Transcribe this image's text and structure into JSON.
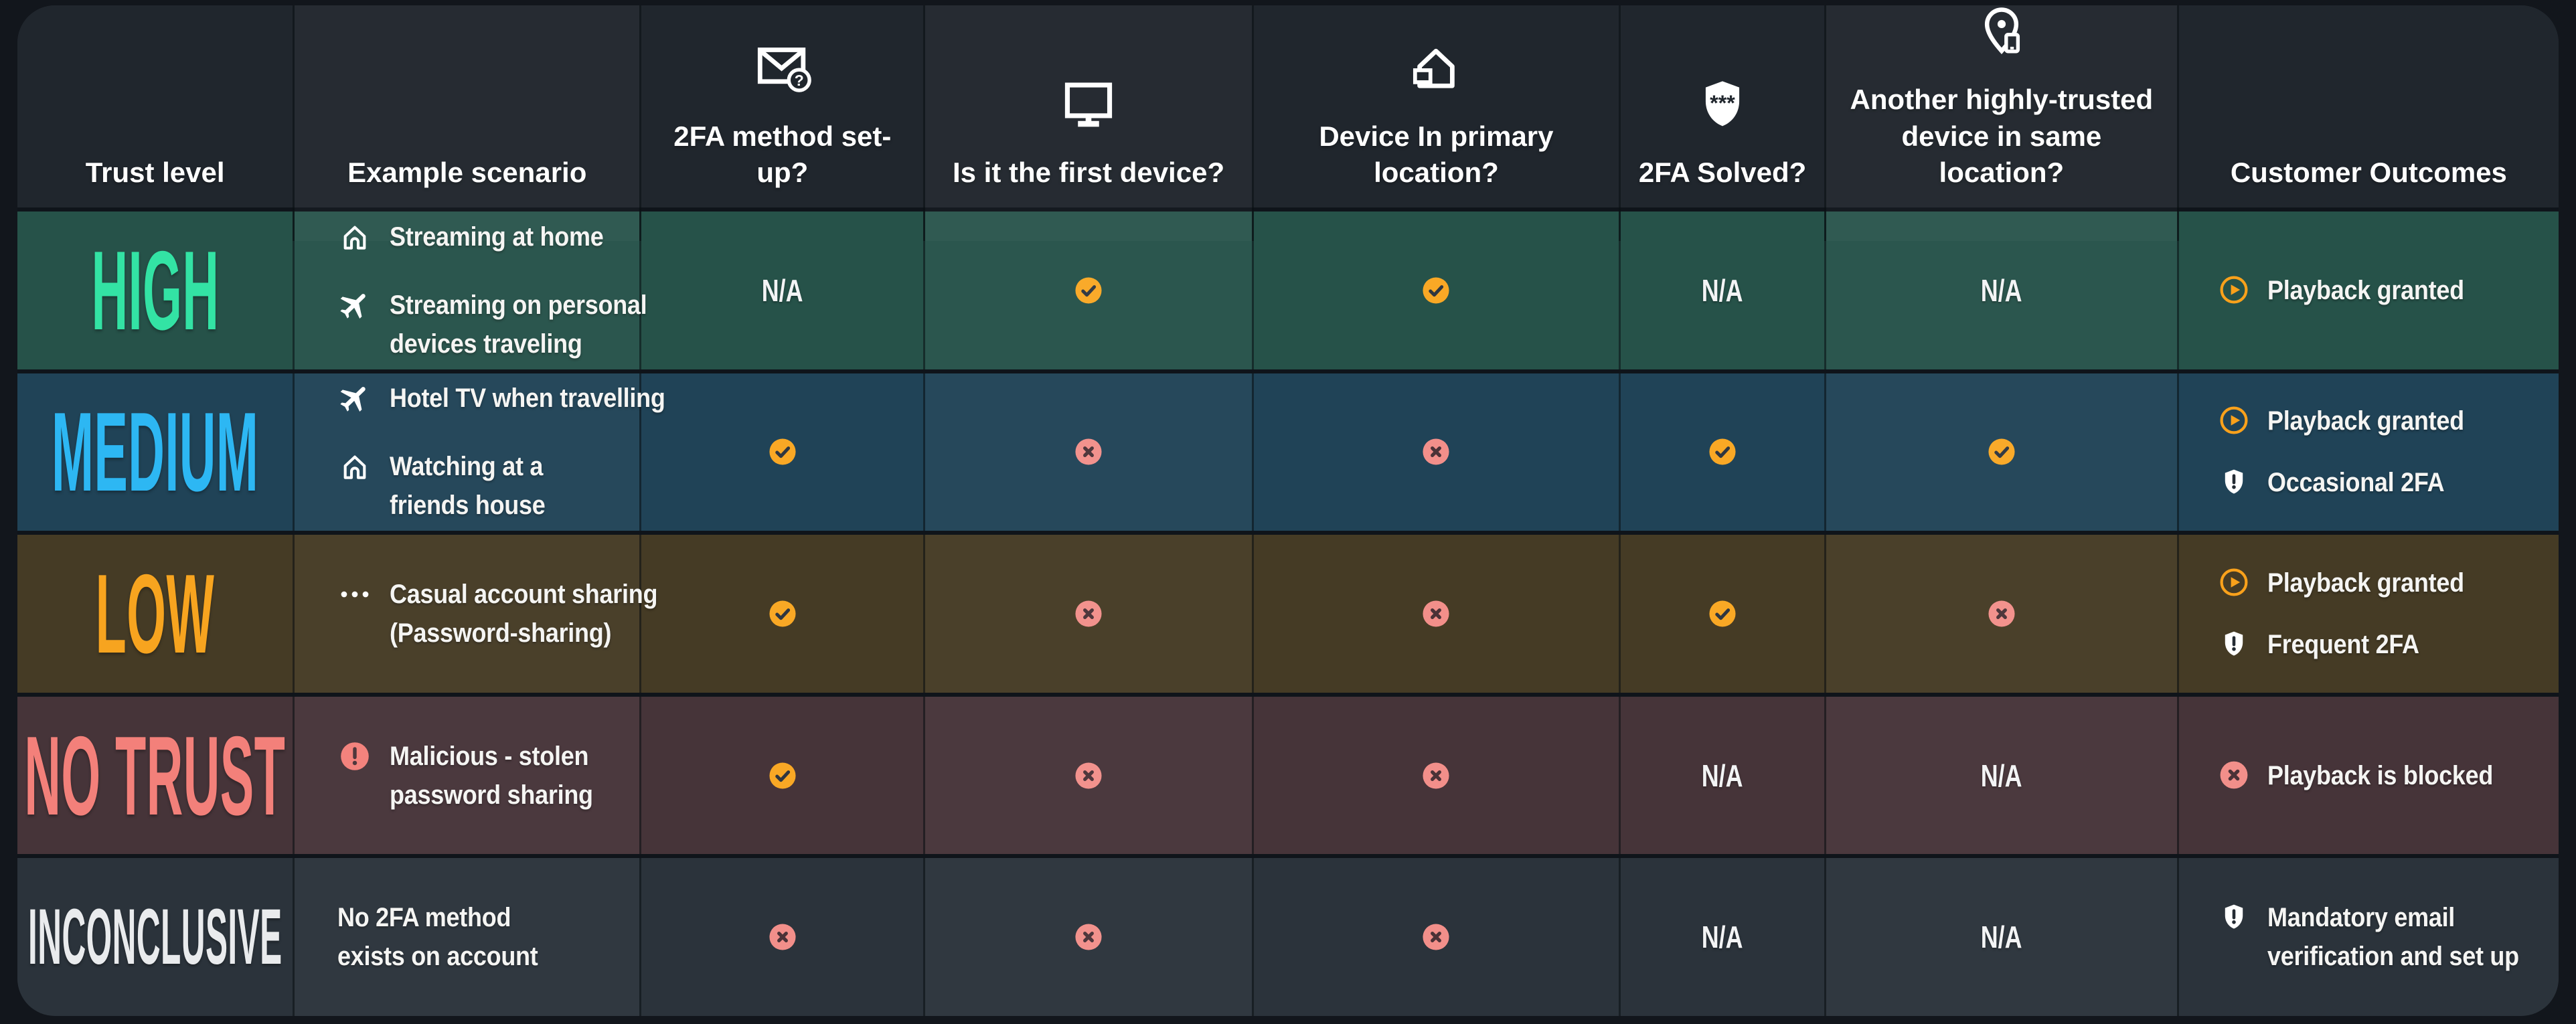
{
  "colors": {
    "page_bg": "#12161c",
    "header_bg": "#20262d",
    "separator": "#0f141a",
    "check": "#f9a825",
    "check_glyph": "#2f3640",
    "cross": "#f28f8a",
    "cross_glyph": "#4b3237",
    "play": "#f9a11b",
    "alert": "#f3807a",
    "shield_glyph": "#242b33",
    "white": "#ffffff"
  },
  "table": {
    "na_label": "N/A",
    "columns": [
      {
        "key": "trust",
        "label": "Trust level"
      },
      {
        "key": "scenario",
        "label": "Example scenario"
      },
      {
        "key": "2fa_setup",
        "label": "2FA method set-up?",
        "icon": "email-question-icon"
      },
      {
        "key": "first_device",
        "label": "Is it the first device?",
        "icon": "monitor-icon"
      },
      {
        "key": "primary_location",
        "label": "Device In primary location?",
        "icon": "house-device-icon"
      },
      {
        "key": "2fa_solved",
        "label": "2FA Solved?",
        "icon": "shield-password-icon"
      },
      {
        "key": "another_trusted",
        "label": "Another highly-trusted\ndevice in same location?",
        "icon": "location-device-icon"
      },
      {
        "key": "outcomes",
        "label": "Customer Outcomes"
      }
    ],
    "rows": [
      {
        "id": "high",
        "label": "HIGH",
        "label_color": "#33e3a4",
        "bg": "#265249",
        "scenarios": [
          {
            "icon": "home-icon",
            "text": "Streaming at home"
          },
          {
            "icon": "plane-icon",
            "text": "Streaming on personal\ndevices traveling"
          }
        ],
        "checks": {
          "2fa_setup": "na",
          "first_device": "check",
          "primary_location": "check",
          "2fa_solved": "na",
          "another_trusted": "na"
        },
        "outcomes": [
          {
            "icon": "play-circle-icon",
            "text": "Playback granted"
          }
        ]
      },
      {
        "id": "medium",
        "label": "MEDIUM",
        "label_color": "#2db7f3",
        "bg": "#204357",
        "scenarios": [
          {
            "icon": "plane-icon",
            "text": "Hotel TV when travelling"
          },
          {
            "icon": "home-icon",
            "text": "Watching at a\nfriends house"
          }
        ],
        "checks": {
          "2fa_setup": "check",
          "first_device": "cross",
          "primary_location": "cross",
          "2fa_solved": "check",
          "another_trusted": "check"
        },
        "outcomes": [
          {
            "icon": "play-circle-icon",
            "text": "Playback granted"
          },
          {
            "icon": "shield-alert-icon",
            "text": "Occasional 2FA"
          }
        ]
      },
      {
        "id": "low",
        "label": "LOW",
        "label_color": "#f7a41f",
        "bg": "#453b25",
        "scenarios": [
          {
            "icon": "ellipsis-icon",
            "text": "Casual account sharing\n(Password-sharing)"
          }
        ],
        "checks": {
          "2fa_setup": "check",
          "first_device": "cross",
          "primary_location": "cross",
          "2fa_solved": "check",
          "another_trusted": "cross"
        },
        "outcomes": [
          {
            "icon": "play-circle-icon",
            "text": "Playback granted"
          },
          {
            "icon": "shield-alert-icon",
            "text": "Frequent 2FA"
          }
        ]
      },
      {
        "id": "no-trust",
        "label": "NO TRUST",
        "label_color": "#f3807a",
        "bg": "#463439",
        "scenarios": [
          {
            "icon": "alert-circle-icon",
            "text": "Malicious - stolen\npassword sharing"
          }
        ],
        "checks": {
          "2fa_setup": "check",
          "first_device": "cross",
          "primary_location": "cross",
          "2fa_solved": "na",
          "another_trusted": "na"
        },
        "outcomes": [
          {
            "icon": "cross-circle-icon",
            "text": "Playback is blocked"
          }
        ]
      },
      {
        "id": "inconclusive",
        "label": "INCONCLUSIVE",
        "label_color": "#e9ebed",
        "bg": "#2b333b",
        "scenarios": [
          {
            "text": "No 2FA method\nexists on account"
          }
        ],
        "checks": {
          "2fa_setup": "cross",
          "first_device": "cross",
          "primary_location": "cross",
          "2fa_solved": "na",
          "another_trusted": "na"
        },
        "outcomes": [
          {
            "icon": "shield-alert-icon",
            "text": "Mandatory email\nverification and set up"
          }
        ]
      }
    ]
  }
}
